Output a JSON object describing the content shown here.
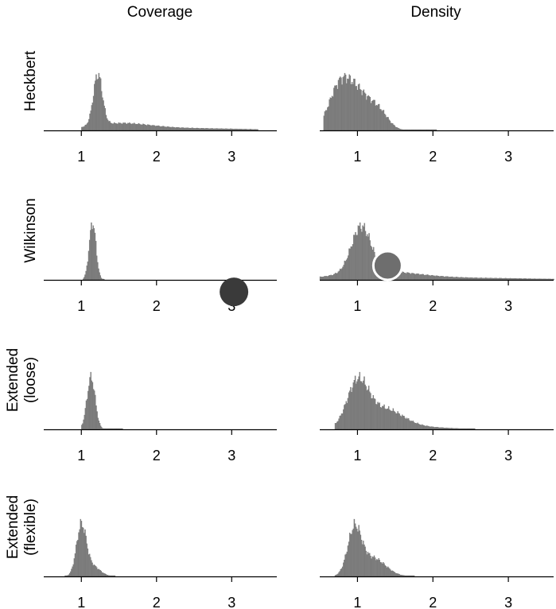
{
  "figure": {
    "columns": [
      "Coverage",
      "Density"
    ],
    "rows": [
      {
        "label_lines": [
          "Heckbert"
        ]
      },
      {
        "label_lines": [
          "Wilkinson"
        ]
      },
      {
        "label_lines": [
          "Extended",
          "(loose)"
        ]
      },
      {
        "label_lines": [
          "Extended",
          "(flexible)"
        ]
      }
    ],
    "bar_color": "#808080",
    "axis_color": "#000000",
    "markers": [
      {
        "panel": "Wilkinson-Density",
        "x": 1.4,
        "y_fraction": 0.25,
        "fill": "#6e6e6e",
        "stroke": "#ffffff"
      },
      {
        "panel": "Wilkinson-Coverage",
        "x": 3.03,
        "y_fraction": -0.21,
        "fill": "#3a3a3a",
        "stroke": "none"
      }
    ]
  },
  "chart_data": [
    {
      "type": "histogram",
      "row": "Heckbert",
      "column": "Coverage",
      "xlim": [
        0.5,
        3.6
      ],
      "xticks": [
        1,
        2,
        3
      ],
      "range": [
        1.0,
        3.35
      ],
      "peaks": [
        {
          "center": 1.22,
          "width": 0.06,
          "height": 1.0
        },
        {
          "center": 1.5,
          "width": 0.4,
          "height": 0.12
        },
        {
          "center": 2.4,
          "width": 0.8,
          "height": 0.04
        }
      ]
    },
    {
      "type": "histogram",
      "row": "Heckbert",
      "column": "Density",
      "xlim": [
        0.5,
        3.6
      ],
      "xticks": [
        1,
        2,
        3
      ],
      "range": [
        0.55,
        2.05
      ],
      "peaks": [
        {
          "center": 0.75,
          "width": 0.14,
          "height": 0.9
        },
        {
          "center": 1.0,
          "width": 0.18,
          "height": 0.95
        },
        {
          "center": 1.3,
          "width": 0.12,
          "height": 0.35
        }
      ]
    },
    {
      "type": "histogram",
      "row": "Wilkinson",
      "column": "Coverage",
      "xlim": [
        0.5,
        3.6
      ],
      "xticks": [
        1,
        2,
        3
      ],
      "range": [
        1.02,
        1.3
      ],
      "peaks": [
        {
          "center": 1.15,
          "width": 0.045,
          "height": 1.0
        }
      ]
    },
    {
      "type": "histogram",
      "row": "Wilkinson",
      "column": "Density",
      "xlim": [
        0.5,
        3.6
      ],
      "xticks": [
        1,
        2,
        3
      ],
      "range": [
        0.5,
        3.6
      ],
      "peaks": [
        {
          "center": 1.05,
          "width": 0.13,
          "height": 0.6
        },
        {
          "center": 1.25,
          "width": 0.5,
          "height": 0.1
        },
        {
          "center": 2.3,
          "width": 1.0,
          "height": 0.025
        }
      ]
    },
    {
      "type": "histogram",
      "row": "Extended (loose)",
      "column": "Coverage",
      "xlim": [
        0.5,
        3.6
      ],
      "xticks": [
        1,
        2,
        3
      ],
      "range": [
        1.0,
        1.55
      ],
      "peaks": [
        {
          "center": 1.13,
          "width": 0.055,
          "height": 1.0
        }
      ]
    },
    {
      "type": "histogram",
      "row": "Extended (loose)",
      "column": "Density",
      "xlim": [
        0.5,
        3.6
      ],
      "xticks": [
        1,
        2,
        3
      ],
      "range": [
        0.7,
        2.55
      ],
      "peaks": [
        {
          "center": 1.0,
          "width": 0.14,
          "height": 0.7
        },
        {
          "center": 1.35,
          "width": 0.25,
          "height": 0.32
        },
        {
          "center": 1.9,
          "width": 0.35,
          "height": 0.03
        }
      ]
    },
    {
      "type": "histogram",
      "row": "Extended (flexible)",
      "column": "Coverage",
      "xlim": [
        0.5,
        3.6
      ],
      "xticks": [
        1,
        2,
        3
      ],
      "range": [
        0.78,
        1.45
      ],
      "peaks": [
        {
          "center": 1.0,
          "width": 0.065,
          "height": 0.9
        },
        {
          "center": 1.15,
          "width": 0.1,
          "height": 0.18
        }
      ]
    },
    {
      "type": "histogram",
      "row": "Extended (flexible)",
      "column": "Density",
      "xlim": [
        0.5,
        3.6
      ],
      "xticks": [
        1,
        2,
        3
      ],
      "range": [
        0.7,
        1.75
      ],
      "peaks": [
        {
          "center": 0.96,
          "width": 0.09,
          "height": 0.92
        },
        {
          "center": 1.2,
          "width": 0.17,
          "height": 0.38
        }
      ]
    }
  ]
}
